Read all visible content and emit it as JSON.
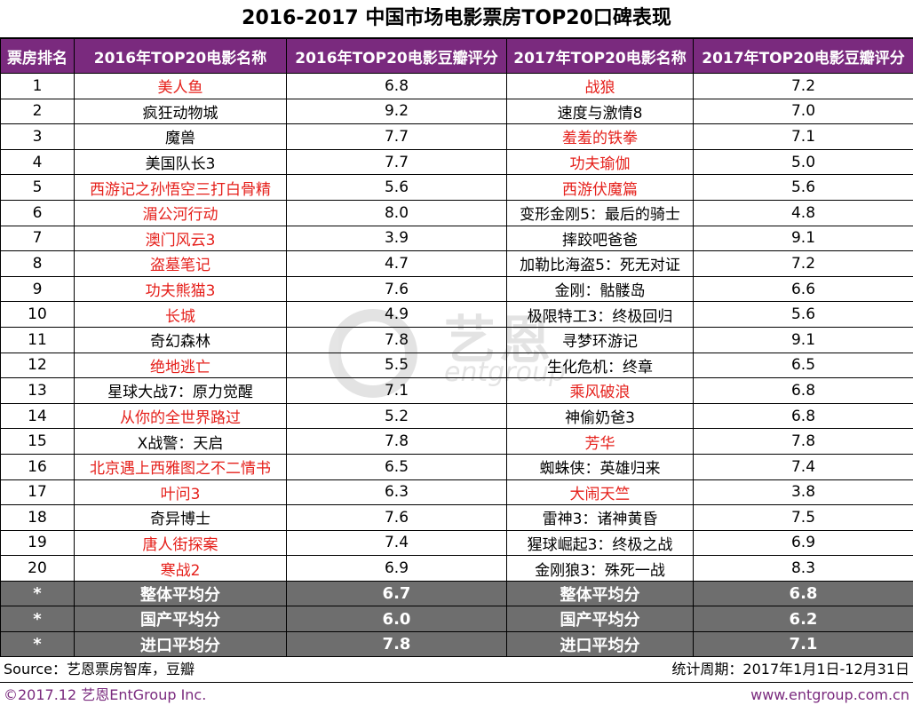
{
  "title": "2016-2017 中国市场电影票房TOP20口碑表现",
  "headers": [
    "票房排名",
    "2016年TOP20电影名称",
    "2016年TOP20电影豆瓣评分",
    "2017年TOP20电影名称",
    "2017年TOP20电影豆瓣评分"
  ],
  "rows": [
    {
      "rank": "1",
      "m16": "美人鱼",
      "r16": "6.8",
      "m17": "战狼",
      "r17": "7.2",
      "red16": true,
      "red17": true
    },
    {
      "rank": "2",
      "m16": "疯狂动物城",
      "r16": "9.2",
      "m17": "速度与激情8",
      "r17": "7.0",
      "red16": false,
      "red17": false
    },
    {
      "rank": "3",
      "m16": "魔兽",
      "r16": "7.7",
      "m17": "羞羞的铁拳",
      "r17": "7.1",
      "red16": false,
      "red17": true
    },
    {
      "rank": "4",
      "m16": "美国队长3",
      "r16": "7.7",
      "m17": "功夫瑜伽",
      "r17": "5.0",
      "red16": false,
      "red17": true
    },
    {
      "rank": "5",
      "m16": "西游记之孙悟空三打白骨精",
      "r16": "5.6",
      "m17": "西游伏魔篇",
      "r17": "5.6",
      "red16": true,
      "red17": true
    },
    {
      "rank": "6",
      "m16": "湄公河行动",
      "r16": "8.0",
      "m17": "变形金刚5：最后的骑士",
      "r17": "4.8",
      "red16": true,
      "red17": false
    },
    {
      "rank": "7",
      "m16": "澳门风云3",
      "r16": "3.9",
      "m17": "摔跤吧爸爸",
      "r17": "9.1",
      "red16": true,
      "red17": false
    },
    {
      "rank": "8",
      "m16": "盗墓笔记",
      "r16": "4.7",
      "m17": "加勒比海盗5：死无对证",
      "r17": "7.2",
      "red16": true,
      "red17": false
    },
    {
      "rank": "9",
      "m16": "功夫熊猫3",
      "r16": "7.6",
      "m17": "金刚：骷髅岛",
      "r17": "6.6",
      "red16": true,
      "red17": false
    },
    {
      "rank": "10",
      "m16": "长城",
      "r16": "4.9",
      "m17": "极限特工3：终极回归",
      "r17": "5.6",
      "red16": true,
      "red17": false
    },
    {
      "rank": "11",
      "m16": "奇幻森林",
      "r16": "7.8",
      "m17": "寻梦环游记",
      "r17": "9.1",
      "red16": false,
      "red17": false
    },
    {
      "rank": "12",
      "m16": "绝地逃亡",
      "r16": "5.5",
      "m17": "生化危机：终章",
      "r17": "6.5",
      "red16": true,
      "red17": false
    },
    {
      "rank": "13",
      "m16": "星球大战7：原力觉醒",
      "r16": "7.1",
      "m17": "乘风破浪",
      "r17": "6.8",
      "red16": false,
      "red17": true
    },
    {
      "rank": "14",
      "m16": "从你的全世界路过",
      "r16": "5.2",
      "m17": "神偷奶爸3",
      "r17": "6.8",
      "red16": true,
      "red17": false
    },
    {
      "rank": "15",
      "m16": "X战警：天启",
      "r16": "7.8",
      "m17": "芳华",
      "r17": "7.8",
      "red16": false,
      "red17": true
    },
    {
      "rank": "16",
      "m16": "北京遇上西雅图之不二情书",
      "r16": "6.5",
      "m17": "蜘蛛侠：英雄归来",
      "r17": "7.4",
      "red16": true,
      "red17": false
    },
    {
      "rank": "17",
      "m16": "叶问3",
      "r16": "6.3",
      "m17": "大闹天竺",
      "r17": "3.8",
      "red16": true,
      "red17": true
    },
    {
      "rank": "18",
      "m16": "奇异博士",
      "r16": "7.6",
      "m17": "雷神3：诸神黄昏",
      "r17": "7.5",
      "red16": false,
      "red17": false
    },
    {
      "rank": "19",
      "m16": "唐人街探案",
      "r16": "7.4",
      "m17": "猩球崛起3：终极之战",
      "r17": "6.9",
      "red16": true,
      "red17": false
    },
    {
      "rank": "20",
      "m16": "寒战2",
      "r16": "6.9",
      "m17": "金刚狼3：殊死一战",
      "r17": "8.3",
      "red16": true,
      "red17": false
    }
  ],
  "averages": [
    {
      "rank": "*",
      "label16": "整体平均分",
      "v16": "6.7",
      "label17": "整体平均分",
      "v17": "6.8"
    },
    {
      "rank": "*",
      "label16": "国产平均分",
      "v16": "6.0",
      "label17": "国产平均分",
      "v17": "6.2"
    },
    {
      "rank": "*",
      "label16": "进口平均分",
      "v16": "7.8",
      "label17": "进口平均分",
      "v17": "7.1"
    }
  ],
  "source": "Source：艺恩票房智库，豆瓣",
  "period": "统计周期：2017年1月1日-12月31日",
  "copyright": "©2017.12 艺恩EntGroup Inc.",
  "website": "www.entgroup.com.cn",
  "watermark": {
    "main": "艺恩",
    "sub": "entgroup"
  },
  "colors": {
    "header_bg": "#7a2a7e",
    "domestic_red": "#e5201b",
    "avg_bg": "#6e6e6e"
  }
}
